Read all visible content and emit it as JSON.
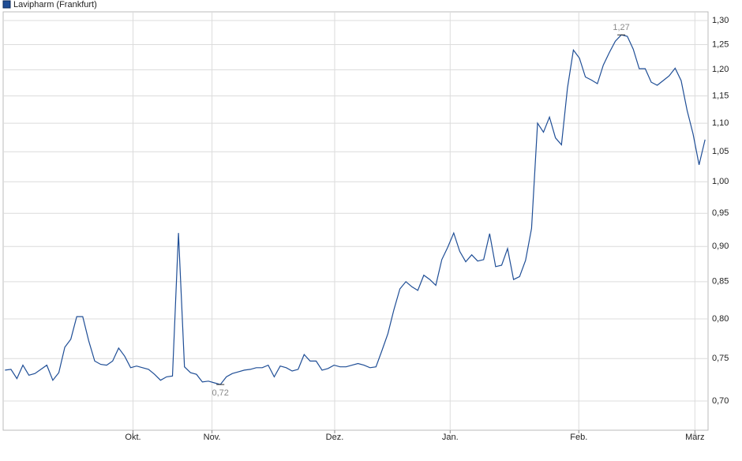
{
  "chart_data": {
    "type": "line",
    "legend": "Lavipharm (Frankfurt)",
    "log_scale": true,
    "grid": true,
    "series": [
      {
        "name": "Lavipharm (Frankfurt)",
        "color": "#1f4e96",
        "values": [
          0.736,
          0.737,
          0.726,
          0.742,
          0.73,
          0.732,
          0.737,
          0.742,
          0.724,
          0.733,
          0.764,
          0.774,
          0.803,
          0.803,
          0.772,
          0.747,
          0.743,
          0.742,
          0.747,
          0.763,
          0.753,
          0.739,
          0.741,
          0.739,
          0.737,
          0.731,
          0.724,
          0.728,
          0.729,
          0.92,
          0.74,
          0.733,
          0.731,
          0.722,
          0.723,
          0.721,
          0.719,
          0.728,
          0.732,
          0.734,
          0.736,
          0.737,
          0.739,
          0.739,
          0.742,
          0.728,
          0.741,
          0.739,
          0.735,
          0.737,
          0.755,
          0.747,
          0.747,
          0.736,
          0.738,
          0.742,
          0.74,
          0.74,
          0.742,
          0.744,
          0.742,
          0.739,
          0.74,
          0.76,
          0.781,
          0.812,
          0.84,
          0.85,
          0.843,
          0.838,
          0.859,
          0.853,
          0.845,
          0.881,
          0.899,
          0.92,
          0.893,
          0.878,
          0.888,
          0.879,
          0.881,
          0.919,
          0.871,
          0.873,
          0.897,
          0.853,
          0.857,
          0.88,
          0.927,
          1.1,
          1.084,
          1.111,
          1.074,
          1.062,
          1.165,
          1.239,
          1.223,
          1.186,
          1.18,
          1.173,
          1.209,
          1.234,
          1.257,
          1.27,
          1.267,
          1.241,
          1.202,
          1.202,
          1.176,
          1.17,
          1.179,
          1.188,
          1.203,
          1.179,
          1.123,
          1.081,
          1.028,
          1.071
        ]
      }
    ],
    "annotations": [
      {
        "text": "1,27",
        "x": 103,
        "y": 1.27
      },
      {
        "text": "0,72",
        "x": 36,
        "y": 0.719
      }
    ],
    "xlim": [
      -0.3,
      117.5
    ],
    "xticks": [
      {
        "value": 21.4,
        "label": "Okt."
      },
      {
        "value": 34.6,
        "label": "Nov."
      },
      {
        "value": 55.1,
        "label": "Dez."
      },
      {
        "value": 74.4,
        "label": "Jan."
      },
      {
        "value": 95.9,
        "label": "Feb."
      },
      {
        "value": 115.3,
        "label": "März"
      }
    ],
    "ylim": [
      0.6675,
      1.3185
    ],
    "yticks": [
      {
        "value": 0.7,
        "label": "0,70"
      },
      {
        "value": 0.75,
        "label": "0,75"
      },
      {
        "value": 0.8,
        "label": "0,80"
      },
      {
        "value": 0.85,
        "label": "0,85"
      },
      {
        "value": 0.9,
        "label": "0,90"
      },
      {
        "value": 0.95,
        "label": "0,95"
      },
      {
        "value": 1.0,
        "label": "1,00"
      },
      {
        "value": 1.05,
        "label": "1,05"
      },
      {
        "value": 1.1,
        "label": "1,10"
      },
      {
        "value": 1.15,
        "label": "1,15"
      },
      {
        "value": 1.2,
        "label": "1,20"
      },
      {
        "value": 1.25,
        "label": "1,25"
      },
      {
        "value": 1.3,
        "label": "1,30"
      }
    ]
  }
}
